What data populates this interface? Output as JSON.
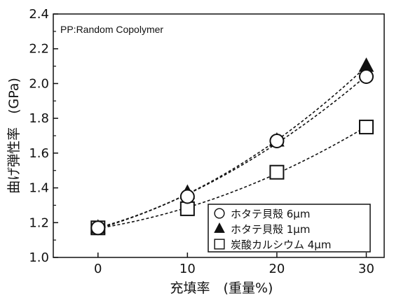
{
  "chart_data": {
    "type": "scatter",
    "annotation": "PP:Random Copolymer",
    "xlabel": "充填率　(重量%)",
    "ylabel": "曲げ弾性率　(GPa)",
    "x_ticks": [
      "0",
      "10",
      "20",
      "30"
    ],
    "y_ticks": [
      "1.0",
      "1.2",
      "1.4",
      "1.6",
      "1.8",
      "2.0",
      "2.2",
      "2.4"
    ],
    "xlim": [
      -5,
      32
    ],
    "ylim": [
      1.0,
      2.4
    ],
    "legend_position": "bottom-right",
    "series": [
      {
        "name": "ホタテ貝殻 6μm",
        "marker": "open-circle",
        "x": [
          0,
          10,
          20,
          30
        ],
        "y": [
          1.17,
          1.35,
          1.67,
          2.04
        ]
      },
      {
        "name": "ホタテ貝殻 1μm",
        "marker": "filled-triangle",
        "x": [
          0,
          10,
          20,
          30
        ],
        "y": [
          1.17,
          1.37,
          1.67,
          2.1
        ]
      },
      {
        "name": "炭酸カルシウム 4μm",
        "marker": "open-square",
        "x": [
          0,
          10,
          20,
          30
        ],
        "y": [
          1.17,
          1.28,
          1.49,
          1.75
        ]
      }
    ],
    "fit_lines": "dashed curves through each series",
    "colors": {
      "ink": "#111111",
      "background": "#ffffff"
    }
  }
}
